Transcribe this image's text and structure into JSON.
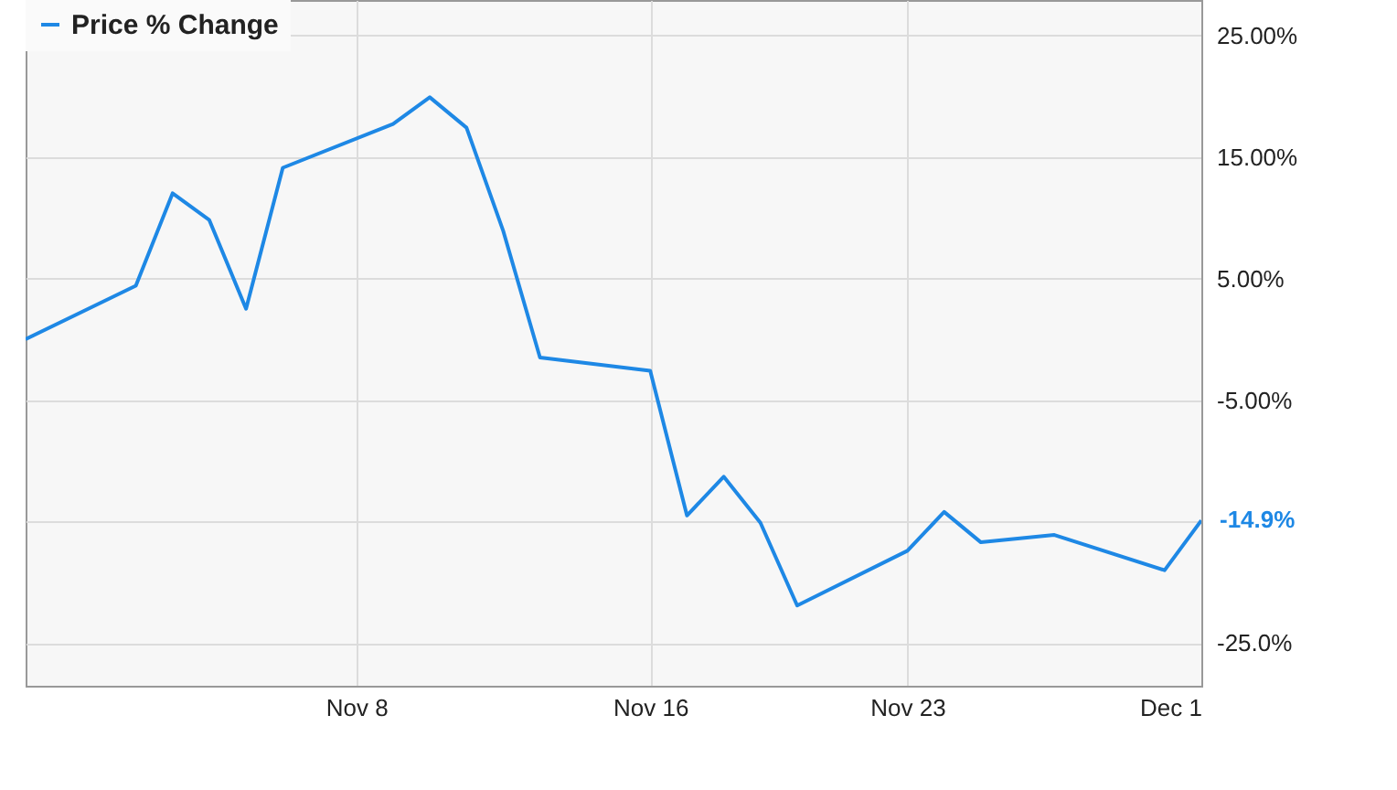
{
  "chart_data": {
    "type": "line",
    "x": [
      "--10-30",
      "--11-02",
      "--11-03",
      "--11-04",
      "--11-05",
      "--11-06",
      "--11-09",
      "--11-10",
      "--11-11",
      "--11-12",
      "--11-13",
      "--11-16",
      "--11-17",
      "--11-18",
      "--11-19",
      "--11-20",
      "--11-23",
      "--11-24",
      "--11-25",
      "--11-27",
      "--11-30",
      "--12-01"
    ],
    "series": [
      {
        "name": "Price % Change",
        "color": "#1e88e5",
        "values": [
          0.0,
          4.4,
          12.0,
          9.8,
          2.5,
          14.1,
          17.7,
          19.9,
          17.4,
          8.9,
          -1.5,
          -2.6,
          -14.5,
          -11.3,
          -15.1,
          -21.9,
          -17.4,
          -14.2,
          -16.7,
          -16.1,
          -19.0,
          -14.9
        ],
        "value_labels": [
          null,
          null,
          null,
          null,
          null,
          null,
          null,
          null,
          null,
          null,
          null,
          null,
          null,
          null,
          null,
          null,
          null,
          null,
          null,
          null,
          null,
          "-14.9%"
        ]
      }
    ],
    "xlim": [
      "--10-30",
      "--12-01"
    ],
    "xticks": [
      {
        "value": "--11-08",
        "label": "Nov 8"
      },
      {
        "value": "--11-16",
        "label": "Nov 16"
      },
      {
        "value": "--11-23",
        "label": "Nov 23"
      },
      {
        "value": "--12-01",
        "label": "Dec 1"
      }
    ],
    "ylim": [
      -28.5,
      27.9
    ],
    "yticks": [
      {
        "value": 25,
        "label": "25.00%"
      },
      {
        "value": 15,
        "label": "15.00%"
      },
      {
        "value": 5,
        "label": "5.00%"
      },
      {
        "value": -5,
        "label": "-5.00%"
      },
      {
        "value": -15,
        "label": null
      },
      {
        "value": -25,
        "label": "-25.0%"
      }
    ],
    "grid": true,
    "legend": "top left",
    "marker": "none",
    "line_style": "solid"
  }
}
